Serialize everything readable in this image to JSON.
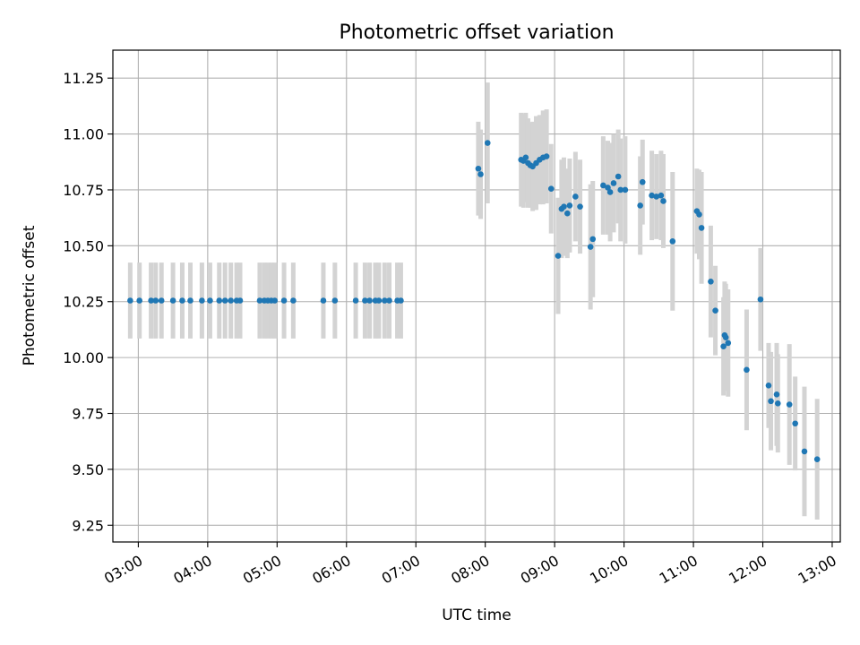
{
  "chart_data": {
    "type": "scatter",
    "title": "Photometric offset variation",
    "xlabel": "UTC time",
    "ylabel": "Photometric offset",
    "xlim": [
      "02:38",
      "13:07"
    ],
    "ylim": [
      9.175,
      11.375
    ],
    "xticks": [
      "03:00",
      "04:00",
      "05:00",
      "06:00",
      "07:00",
      "08:00",
      "09:00",
      "10:00",
      "11:00",
      "12:00",
      "13:00"
    ],
    "yticks": [
      "9.25",
      "9.50",
      "9.75",
      "10.00",
      "10.25",
      "10.50",
      "10.75",
      "11.00",
      "11.25"
    ],
    "grid": true,
    "marker_color": "#1f77b4",
    "errorbar_color": "#d3d3d3",
    "series": [
      {
        "points": [
          {
            "t": "02:53",
            "y": 10.255,
            "err": 0.17
          },
          {
            "t": "03:01",
            "y": 10.255,
            "err": 0.17
          },
          {
            "t": "03:11",
            "y": 10.255,
            "err": 0.17
          },
          {
            "t": "03:15",
            "y": 10.255,
            "err": 0.17
          },
          {
            "t": "03:20",
            "y": 10.255,
            "err": 0.17
          },
          {
            "t": "03:30",
            "y": 10.255,
            "err": 0.17
          },
          {
            "t": "03:38",
            "y": 10.255,
            "err": 0.17
          },
          {
            "t": "03:45",
            "y": 10.255,
            "err": 0.17
          },
          {
            "t": "03:55",
            "y": 10.255,
            "err": 0.17
          },
          {
            "t": "04:02",
            "y": 10.255,
            "err": 0.17
          },
          {
            "t": "04:10",
            "y": 10.255,
            "err": 0.17
          },
          {
            "t": "04:15",
            "y": 10.255,
            "err": 0.17
          },
          {
            "t": "04:20",
            "y": 10.255,
            "err": 0.17
          },
          {
            "t": "04:25",
            "y": 10.255,
            "err": 0.17
          },
          {
            "t": "04:28",
            "y": 10.255,
            "err": 0.17
          },
          {
            "t": "04:45",
            "y": 10.255,
            "err": 0.17
          },
          {
            "t": "04:49",
            "y": 10.255,
            "err": 0.17
          },
          {
            "t": "04:52",
            "y": 10.255,
            "err": 0.17
          },
          {
            "t": "04:55",
            "y": 10.255,
            "err": 0.17
          },
          {
            "t": "04:58",
            "y": 10.255,
            "err": 0.17
          },
          {
            "t": "05:06",
            "y": 10.255,
            "err": 0.17
          },
          {
            "t": "05:14",
            "y": 10.255,
            "err": 0.17
          },
          {
            "t": "05:40",
            "y": 10.255,
            "err": 0.17
          },
          {
            "t": "05:50",
            "y": 10.255,
            "err": 0.17
          },
          {
            "t": "06:08",
            "y": 10.255,
            "err": 0.17
          },
          {
            "t": "06:16",
            "y": 10.255,
            "err": 0.17
          },
          {
            "t": "06:20",
            "y": 10.255,
            "err": 0.17
          },
          {
            "t": "06:25",
            "y": 10.255,
            "err": 0.17
          },
          {
            "t": "06:28",
            "y": 10.255,
            "err": 0.17
          },
          {
            "t": "06:33",
            "y": 10.255,
            "err": 0.17
          },
          {
            "t": "06:37",
            "y": 10.255,
            "err": 0.17
          },
          {
            "t": "06:44",
            "y": 10.255,
            "err": 0.17
          },
          {
            "t": "06:47",
            "y": 10.255,
            "err": 0.17
          },
          {
            "t": "07:54",
            "y": 10.845,
            "err": 0.21
          },
          {
            "t": "07:56",
            "y": 10.82,
            "err": 0.2
          },
          {
            "t": "08:02",
            "y": 10.96,
            "err": 0.27
          },
          {
            "t": "08:31",
            "y": 10.885,
            "err": 0.21
          },
          {
            "t": "08:33",
            "y": 10.88,
            "err": 0.21
          },
          {
            "t": "08:35",
            "y": 10.895,
            "err": 0.2
          },
          {
            "t": "08:37",
            "y": 10.87,
            "err": 0.2
          },
          {
            "t": "08:39",
            "y": 10.86,
            "err": 0.19
          },
          {
            "t": "08:41",
            "y": 10.855,
            "err": 0.2
          },
          {
            "t": "08:44",
            "y": 10.87,
            "err": 0.21
          },
          {
            "t": "08:47",
            "y": 10.885,
            "err": 0.2
          },
          {
            "t": "08:50",
            "y": 10.895,
            "err": 0.21
          },
          {
            "t": "08:53",
            "y": 10.9,
            "err": 0.21
          },
          {
            "t": "08:57",
            "y": 10.755,
            "err": 0.2
          },
          {
            "t": "09:03",
            "y": 10.455,
            "err": 0.26
          },
          {
            "t": "09:06",
            "y": 10.665,
            "err": 0.22
          },
          {
            "t": "09:08",
            "y": 10.675,
            "err": 0.22
          },
          {
            "t": "09:11",
            "y": 10.645,
            "err": 0.2
          },
          {
            "t": "09:13",
            "y": 10.68,
            "err": 0.21
          },
          {
            "t": "09:18",
            "y": 10.72,
            "err": 0.2
          },
          {
            "t": "09:22",
            "y": 10.675,
            "err": 0.21
          },
          {
            "t": "09:31",
            "y": 10.495,
            "err": 0.28
          },
          {
            "t": "09:33",
            "y": 10.53,
            "err": 0.26
          },
          {
            "t": "09:42",
            "y": 10.77,
            "err": 0.22
          },
          {
            "t": "09:46",
            "y": 10.76,
            "err": 0.21
          },
          {
            "t": "09:48",
            "y": 10.74,
            "err": 0.22
          },
          {
            "t": "09:51",
            "y": 10.78,
            "err": 0.22
          },
          {
            "t": "09:55",
            "y": 10.81,
            "err": 0.21
          },
          {
            "t": "09:57",
            "y": 10.75,
            "err": 0.23
          },
          {
            "t": "10:01",
            "y": 10.75,
            "err": 0.24
          },
          {
            "t": "10:14",
            "y": 10.68,
            "err": 0.22
          },
          {
            "t": "10:16",
            "y": 10.785,
            "err": 0.19
          },
          {
            "t": "10:24",
            "y": 10.725,
            "err": 0.2
          },
          {
            "t": "10:28",
            "y": 10.72,
            "err": 0.19
          },
          {
            "t": "10:32",
            "y": 10.725,
            "err": 0.2
          },
          {
            "t": "10:34",
            "y": 10.7,
            "err": 0.21
          },
          {
            "t": "10:42",
            "y": 10.52,
            "err": 0.31
          },
          {
            "t": "11:03",
            "y": 10.655,
            "err": 0.19
          },
          {
            "t": "11:05",
            "y": 10.64,
            "err": 0.2
          },
          {
            "t": "11:07",
            "y": 10.58,
            "err": 0.25
          },
          {
            "t": "11:15",
            "y": 10.34,
            "err": 0.25
          },
          {
            "t": "11:19",
            "y": 10.21,
            "err": 0.2
          },
          {
            "t": "11:26",
            "y": 10.05,
            "err": 0.22
          },
          {
            "t": "11:27",
            "y": 10.1,
            "err": 0.24
          },
          {
            "t": "11:28",
            "y": 10.09,
            "err": 0.24
          },
          {
            "t": "11:30",
            "y": 10.065,
            "err": 0.24
          },
          {
            "t": "11:46",
            "y": 9.945,
            "err": 0.27
          },
          {
            "t": "11:58",
            "y": 10.26,
            "err": 0.23
          },
          {
            "t": "12:05",
            "y": 9.875,
            "err": 0.19
          },
          {
            "t": "12:07",
            "y": 9.805,
            "err": 0.22
          },
          {
            "t": "12:12",
            "y": 9.835,
            "err": 0.23
          },
          {
            "t": "12:13",
            "y": 9.795,
            "err": 0.22
          },
          {
            "t": "12:23",
            "y": 9.79,
            "err": 0.27
          },
          {
            "t": "12:28",
            "y": 9.705,
            "err": 0.21
          },
          {
            "t": "12:36",
            "y": 9.58,
            "err": 0.29
          },
          {
            "t": "12:47",
            "y": 9.545,
            "err": 0.27
          }
        ]
      }
    ]
  }
}
